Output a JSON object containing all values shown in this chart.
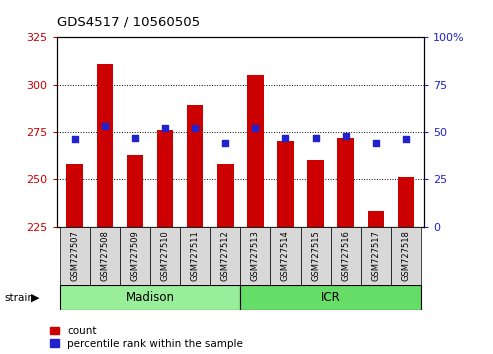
{
  "title": "GDS4517 / 10560505",
  "samples": [
    "GSM727507",
    "GSM727508",
    "GSM727509",
    "GSM727510",
    "GSM727511",
    "GSM727512",
    "GSM727513",
    "GSM727514",
    "GSM727515",
    "GSM727516",
    "GSM727517",
    "GSM727518"
  ],
  "counts": [
    258,
    311,
    263,
    276,
    289,
    258,
    305,
    270,
    260,
    272,
    233,
    251
  ],
  "percentiles": [
    46,
    53,
    47,
    52,
    52,
    44,
    52,
    47,
    47,
    48,
    44,
    46
  ],
  "ylim_left": [
    225,
    325
  ],
  "ylim_right": [
    0,
    100
  ],
  "yticks_left": [
    225,
    250,
    275,
    300,
    325
  ],
  "yticks_right": [
    0,
    25,
    50,
    75,
    100
  ],
  "ytick_right_labels": [
    "0",
    "25",
    "50",
    "75",
    "100%"
  ],
  "bar_color": "#cc0000",
  "dot_color": "#2222cc",
  "bar_bottom": 225,
  "groups": [
    {
      "label": "Madison",
      "start": 0,
      "end": 6,
      "color": "#99ee99"
    },
    {
      "label": "ICR",
      "start": 6,
      "end": 12,
      "color": "#66dd66"
    }
  ],
  "legend_count_label": "count",
  "legend_pct_label": "percentile rank within the sample",
  "tick_label_color_left": "#cc0000",
  "tick_label_color_right": "#2222cc",
  "bg_color": "#d8d8d8"
}
